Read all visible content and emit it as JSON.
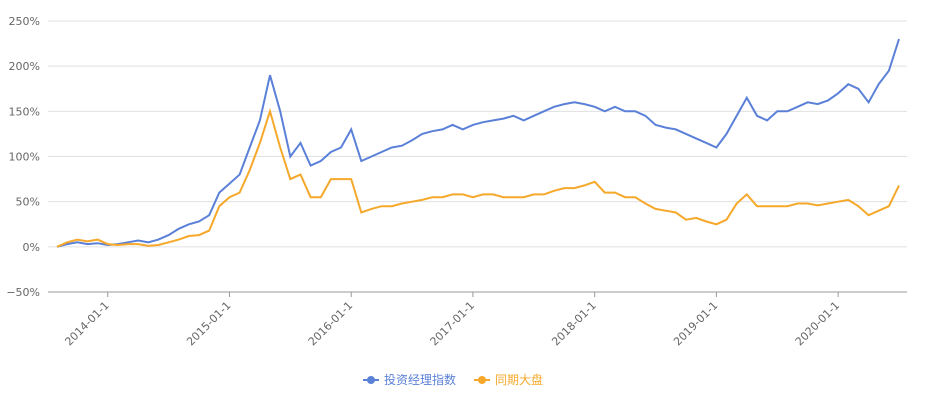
{
  "chart_data": {
    "type": "line",
    "x": [
      "2013-08-1",
      "2013-09-1",
      "2013-10-1",
      "2013-11-1",
      "2013-12-1",
      "2014-01-1",
      "2014-02-1",
      "2014-03-1",
      "2014-04-1",
      "2014-05-1",
      "2014-06-1",
      "2014-07-1",
      "2014-08-1",
      "2014-09-1",
      "2014-10-1",
      "2014-11-1",
      "2014-12-1",
      "2015-01-1",
      "2015-02-1",
      "2015-03-1",
      "2015-04-1",
      "2015-05-1",
      "2015-06-1",
      "2015-07-1",
      "2015-08-1",
      "2015-09-1",
      "2015-10-1",
      "2015-11-1",
      "2015-12-1",
      "2016-01-1",
      "2016-02-1",
      "2016-03-1",
      "2016-04-1",
      "2016-05-1",
      "2016-06-1",
      "2016-07-1",
      "2016-08-1",
      "2016-09-1",
      "2016-10-1",
      "2016-11-1",
      "2016-12-1",
      "2017-01-1",
      "2017-02-1",
      "2017-03-1",
      "2017-04-1",
      "2017-05-1",
      "2017-06-1",
      "2017-07-1",
      "2017-08-1",
      "2017-09-1",
      "2017-10-1",
      "2017-11-1",
      "2017-12-1",
      "2018-01-1",
      "2018-02-1",
      "2018-03-1",
      "2018-04-1",
      "2018-05-1",
      "2018-06-1",
      "2018-07-1",
      "2018-08-1",
      "2018-09-1",
      "2018-10-1",
      "2018-11-1",
      "2018-12-1",
      "2019-01-1",
      "2019-02-1",
      "2019-03-1",
      "2019-04-1",
      "2019-05-1",
      "2019-06-1",
      "2019-07-1",
      "2019-08-1",
      "2019-09-1",
      "2019-10-1",
      "2019-11-1",
      "2019-12-1",
      "2020-01-1",
      "2020-02-1",
      "2020-03-1",
      "2020-04-1",
      "2020-05-1",
      "2020-06-1",
      "2020-07-1"
    ],
    "xticks": [
      "2014-01-1",
      "2015-01-1",
      "2016-01-1",
      "2017-01-1",
      "2018-01-1",
      "2019-01-1",
      "2020-01-1"
    ],
    "series": [
      {
        "name": "投资经理指数",
        "color": "#5b80d8",
        "values": [
          0,
          3,
          5,
          3,
          4,
          2,
          3,
          5,
          7,
          5,
          8,
          13,
          20,
          25,
          28,
          35,
          60,
          70,
          80,
          110,
          140,
          190,
          150,
          100,
          115,
          90,
          95,
          105,
          110,
          130,
          95,
          100,
          105,
          110,
          112,
          118,
          125,
          128,
          130,
          135,
          130,
          135,
          138,
          140,
          142,
          145,
          140,
          145,
          150,
          155,
          158,
          160,
          158,
          155,
          150,
          155,
          150,
          150,
          145,
          135,
          132,
          130,
          125,
          120,
          115,
          110,
          125,
          145,
          165,
          145,
          140,
          150,
          150,
          155,
          160,
          158,
          162,
          170,
          180,
          175,
          160,
          180,
          195,
          230
        ]
      },
      {
        "name": "同期大盘",
        "color": "#f5a82a",
        "values": [
          0,
          5,
          8,
          6,
          8,
          3,
          2,
          3,
          3,
          1,
          2,
          5,
          8,
          12,
          13,
          18,
          45,
          55,
          60,
          85,
          115,
          150,
          110,
          75,
          80,
          55,
          55,
          75,
          75,
          75,
          38,
          42,
          45,
          45,
          48,
          50,
          52,
          55,
          55,
          58,
          58,
          55,
          58,
          58,
          55,
          55,
          55,
          58,
          58,
          62,
          65,
          65,
          68,
          72,
          60,
          60,
          55,
          55,
          48,
          42,
          40,
          38,
          30,
          32,
          28,
          25,
          30,
          48,
          58,
          45,
          45,
          45,
          45,
          48,
          48,
          46,
          48,
          50,
          52,
          45,
          35,
          40,
          45,
          68
        ]
      }
    ],
    "ylim": [
      -50,
      250
    ],
    "yticks": [
      {
        "value": -50,
        "label": "−50%"
      },
      {
        "value": 0,
        "label": "0%"
      },
      {
        "value": 50,
        "label": "50%"
      },
      {
        "value": 100,
        "label": "100%"
      },
      {
        "value": 150,
        "label": "150%"
      },
      {
        "value": 200,
        "label": "200%"
      },
      {
        "value": 250,
        "label": "250%"
      }
    ],
    "grid": true,
    "legend": "bottom"
  }
}
